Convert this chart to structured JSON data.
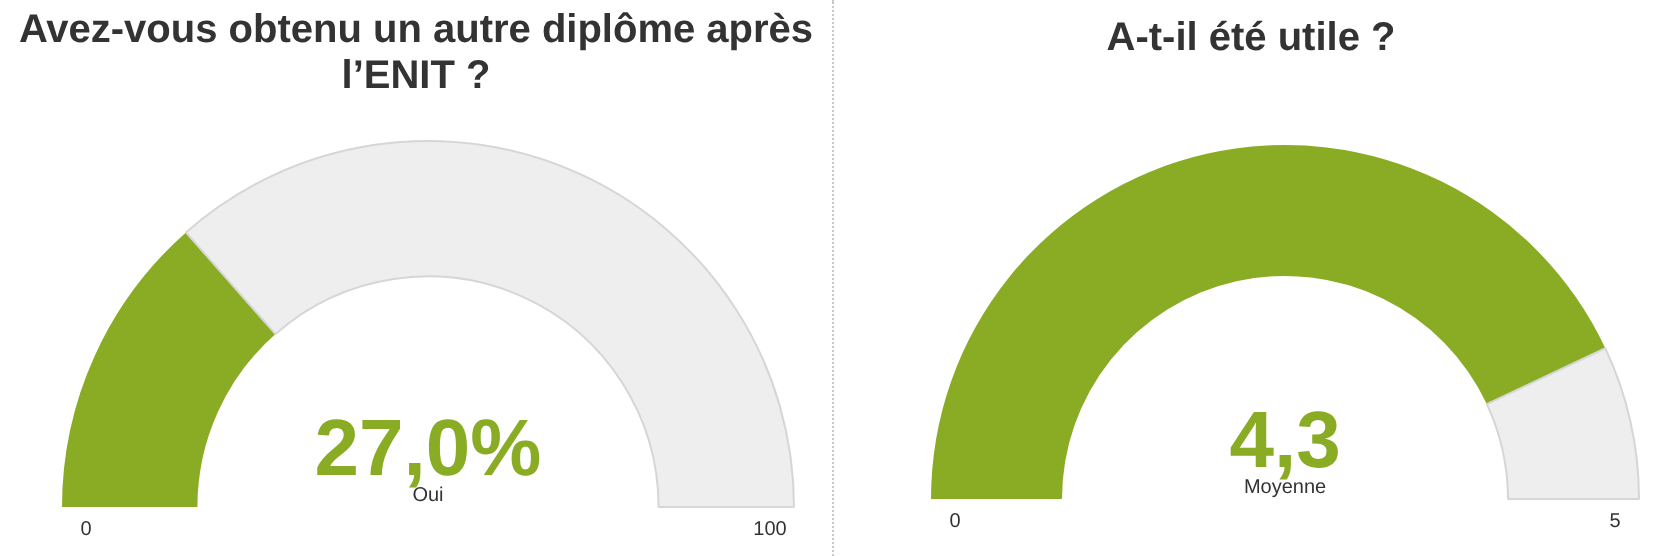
{
  "chart_data": [
    {
      "type": "donut",
      "title": "Avez-vous obtenu un autre diplôme après l’ENIT ?",
      "categories": [
        null,
        null
      ],
      "values": [
        27.0,
        73.0
      ],
      "colors": [
        "#8aac24",
        "#eeeeee"
      ],
      "annotations": [
        "27,0%",
        "Oui",
        "0",
        "100"
      ]
    },
    {
      "type": "donut",
      "title": "A-t-il été utile ?",
      "categories": [
        null,
        null
      ],
      "values": [
        86,
        14
      ],
      "colors": [
        "#8aac24",
        "#eeeeee"
      ],
      "annotations": [
        "4,3",
        "Moyenne",
        "0",
        "5"
      ]
    }
  ]
}
